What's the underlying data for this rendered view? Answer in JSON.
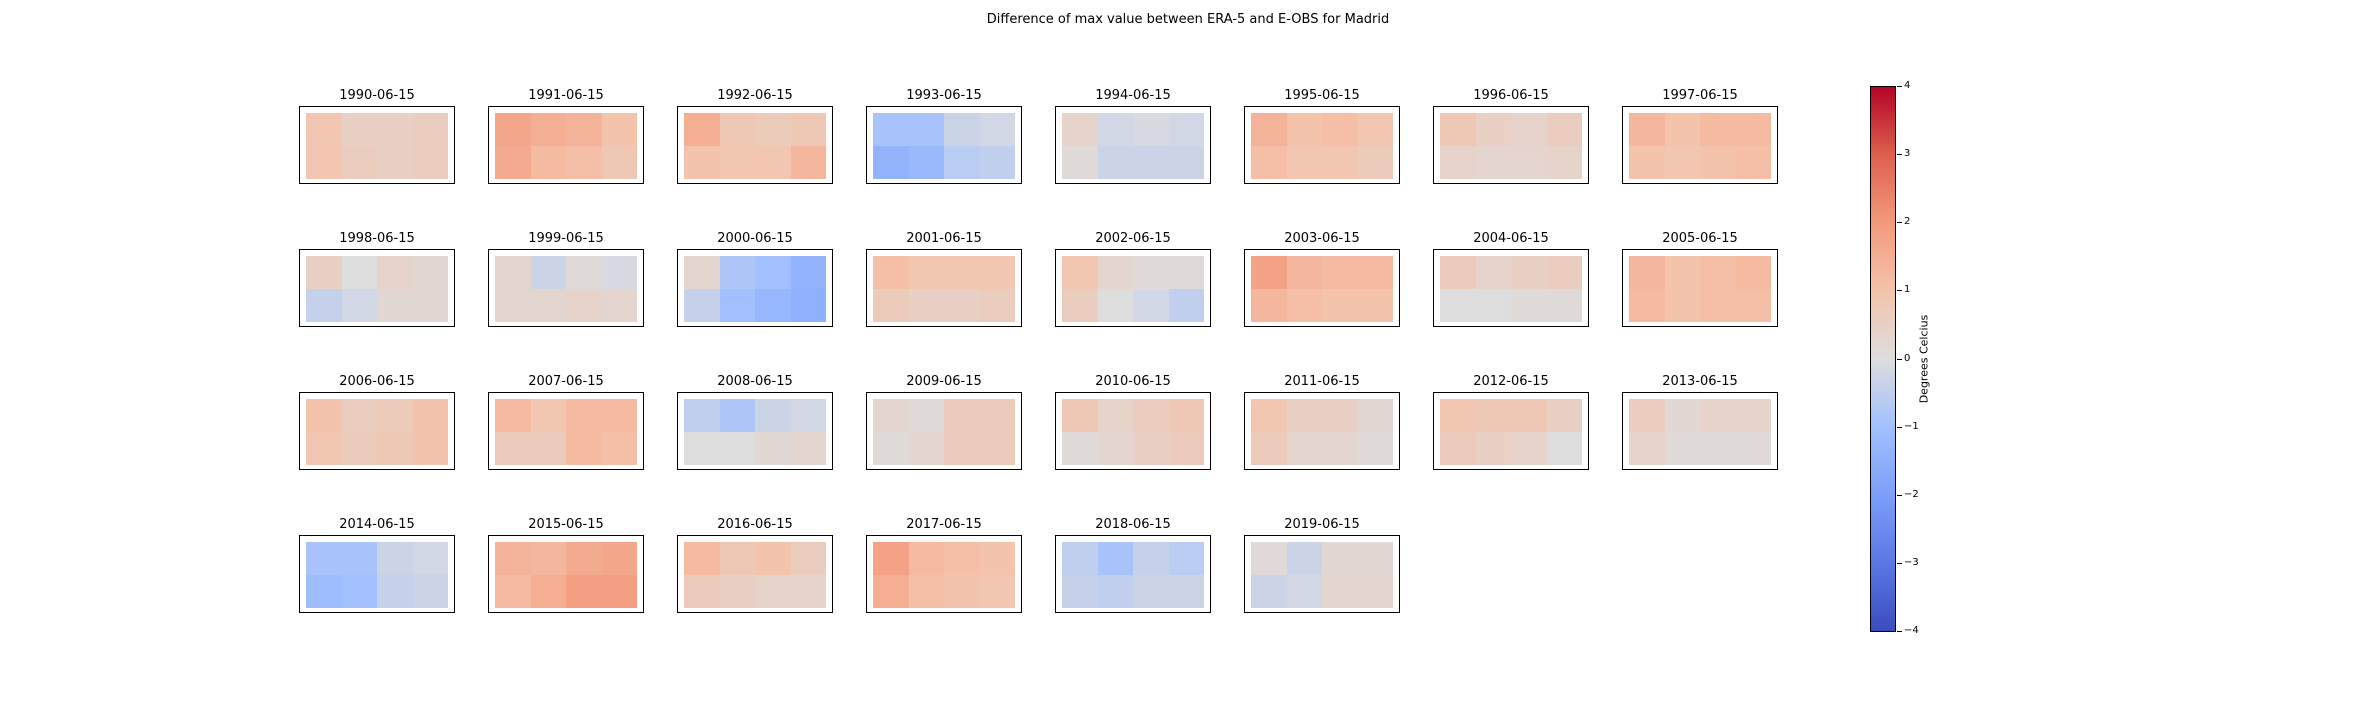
{
  "figure": {
    "title": "Difference of max value between ERA-5 and E-OBS for Madrid"
  },
  "chart_data": {
    "type": "heatmap",
    "title": "Difference of max value between ERA-5 and E-OBS for Madrid",
    "colormap": "coolwarm",
    "vmin": -4,
    "vmax": 4,
    "colorbar": {
      "label": "Degrees Celcius",
      "ticks": [
        "4",
        "3",
        "2",
        "1",
        "0",
        "−1",
        "−2",
        "−3",
        "−4"
      ]
    },
    "panels": [
      {
        "date": "1990-06-15",
        "values": [
          [
            0.9,
            0.5,
            0.5,
            0.6
          ],
          [
            0.9,
            0.6,
            0.5,
            0.6
          ]
        ]
      },
      {
        "date": "1991-06-15",
        "values": [
          [
            1.7,
            1.5,
            1.4,
            1.0
          ],
          [
            1.6,
            1.2,
            1.1,
            0.8
          ]
        ]
      },
      {
        "date": "1992-06-15",
        "values": [
          [
            1.5,
            0.8,
            0.7,
            0.8
          ],
          [
            1.0,
            0.9,
            0.9,
            1.3
          ]
        ]
      },
      {
        "date": "1993-06-15",
        "values": [
          [
            -0.9,
            -0.9,
            -0.3,
            -0.2
          ],
          [
            -1.4,
            -1.2,
            -0.6,
            -0.5
          ]
        ]
      },
      {
        "date": "1994-06-15",
        "values": [
          [
            0.4,
            -0.2,
            -0.1,
            -0.2
          ],
          [
            0.1,
            -0.3,
            -0.3,
            -0.3
          ]
        ]
      },
      {
        "date": "1995-06-15",
        "values": [
          [
            1.4,
            1.0,
            1.1,
            0.9
          ],
          [
            1.1,
            0.9,
            0.9,
            0.7
          ]
        ]
      },
      {
        "date": "1996-06-15",
        "values": [
          [
            0.8,
            0.5,
            0.4,
            0.6
          ],
          [
            0.4,
            0.3,
            0.3,
            0.4
          ]
        ]
      },
      {
        "date": "1997-06-15",
        "values": [
          [
            1.3,
            1.0,
            1.2,
            1.2
          ],
          [
            1.0,
            0.9,
            1.0,
            1.1
          ]
        ]
      },
      {
        "date": "1998-06-15",
        "values": [
          [
            0.5,
            0.0,
            0.4,
            0.2
          ],
          [
            -0.4,
            -0.2,
            0.2,
            0.2
          ]
        ]
      },
      {
        "date": "1999-06-15",
        "values": [
          [
            0.3,
            -0.3,
            0.1,
            -0.1
          ],
          [
            0.3,
            0.3,
            0.4,
            0.3
          ]
        ]
      },
      {
        "date": "2000-06-15",
        "values": [
          [
            0.3,
            -0.8,
            -1.0,
            -1.4
          ],
          [
            -0.4,
            -1.0,
            -1.3,
            -1.5
          ]
        ]
      },
      {
        "date": "2001-06-15",
        "values": [
          [
            1.1,
            0.9,
            0.9,
            0.9
          ],
          [
            0.7,
            0.5,
            0.5,
            0.6
          ]
        ]
      },
      {
        "date": "2002-06-15",
        "values": [
          [
            0.9,
            0.3,
            0.1,
            0.1
          ],
          [
            0.6,
            0.0,
            -0.2,
            -0.5
          ]
        ]
      },
      {
        "date": "2003-06-15",
        "values": [
          [
            1.8,
            1.3,
            1.2,
            1.2
          ],
          [
            1.3,
            1.1,
            1.0,
            1.0
          ]
        ]
      },
      {
        "date": "2004-06-15",
        "values": [
          [
            0.7,
            0.4,
            0.5,
            0.6
          ],
          [
            0.0,
            0.0,
            0.1,
            0.1
          ]
        ]
      },
      {
        "date": "2005-06-15",
        "values": [
          [
            1.3,
            1.0,
            1.1,
            1.2
          ],
          [
            1.2,
            1.0,
            1.1,
            1.1
          ]
        ]
      },
      {
        "date": "2006-06-15",
        "values": [
          [
            1.0,
            0.6,
            0.7,
            1.0
          ],
          [
            0.9,
            0.7,
            0.8,
            1.0
          ]
        ]
      },
      {
        "date": "2007-06-15",
        "values": [
          [
            1.2,
            0.9,
            1.2,
            1.2
          ],
          [
            0.7,
            0.7,
            1.2,
            1.1
          ]
        ]
      },
      {
        "date": "2008-06-15",
        "values": [
          [
            -0.5,
            -0.8,
            -0.3,
            -0.2
          ],
          [
            0.0,
            0.0,
            0.2,
            0.3
          ]
        ]
      },
      {
        "date": "2009-06-15",
        "values": [
          [
            0.3,
            0.1,
            0.7,
            0.7
          ],
          [
            0.1,
            0.3,
            0.7,
            0.7
          ]
        ]
      },
      {
        "date": "2010-06-15",
        "values": [
          [
            0.8,
            0.4,
            0.6,
            0.8
          ],
          [
            0.1,
            0.3,
            0.5,
            0.7
          ]
        ]
      },
      {
        "date": "2011-06-15",
        "values": [
          [
            0.9,
            0.5,
            0.5,
            0.2
          ],
          [
            0.7,
            0.3,
            0.3,
            0.1
          ]
        ]
      },
      {
        "date": "2012-06-15",
        "values": [
          [
            0.9,
            0.8,
            0.8,
            0.5
          ],
          [
            0.7,
            0.5,
            0.4,
            0.0
          ]
        ]
      },
      {
        "date": "2013-06-15",
        "values": [
          [
            0.6,
            0.2,
            0.4,
            0.4
          ],
          [
            0.4,
            0.1,
            0.1,
            0.1
          ]
        ]
      },
      {
        "date": "2014-06-15",
        "values": [
          [
            -0.9,
            -0.9,
            -0.3,
            -0.2
          ],
          [
            -1.1,
            -1.0,
            -0.4,
            -0.3
          ]
        ]
      },
      {
        "date": "2015-06-15",
        "values": [
          [
            1.4,
            1.3,
            1.6,
            1.7
          ],
          [
            1.2,
            1.5,
            1.9,
            1.9
          ]
        ]
      },
      {
        "date": "2016-06-15",
        "values": [
          [
            1.2,
            0.8,
            1.0,
            0.6
          ],
          [
            0.7,
            0.5,
            0.4,
            0.4
          ]
        ]
      },
      {
        "date": "2017-06-15",
        "values": [
          [
            1.8,
            1.2,
            1.1,
            1.0
          ],
          [
            1.5,
            1.1,
            1.0,
            0.9
          ]
        ]
      },
      {
        "date": "2018-06-15",
        "values": [
          [
            -0.5,
            -0.9,
            -0.4,
            -0.6
          ],
          [
            -0.4,
            -0.5,
            -0.3,
            -0.3
          ]
        ]
      },
      {
        "date": "2019-06-15",
        "values": [
          [
            0.1,
            -0.3,
            0.2,
            0.2
          ],
          [
            -0.3,
            -0.2,
            0.3,
            0.3
          ]
        ]
      }
    ]
  }
}
